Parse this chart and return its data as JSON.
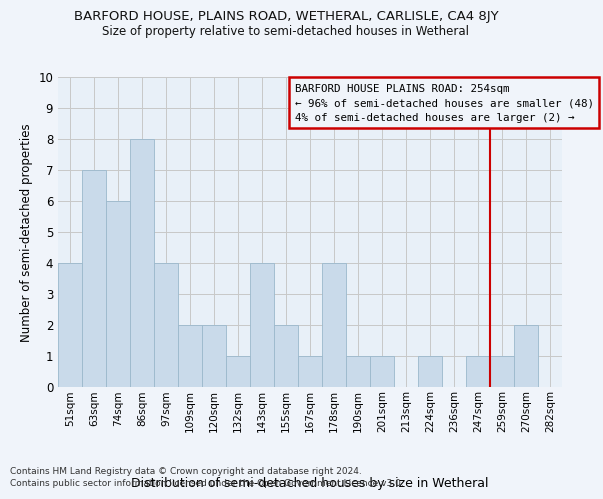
{
  "title": "BARFORD HOUSE, PLAINS ROAD, WETHERAL, CARLISLE, CA4 8JY",
  "subtitle": "Size of property relative to semi-detached houses in Wetheral",
  "xlabel": "Distribution of semi-detached houses by size in Wetheral",
  "ylabel": "Number of semi-detached properties",
  "footnote1": "Contains HM Land Registry data © Crown copyright and database right 2024.",
  "footnote2": "Contains public sector information licensed under the Open Government Licence v3.0.",
  "categories": [
    "51sqm",
    "63sqm",
    "74sqm",
    "86sqm",
    "97sqm",
    "109sqm",
    "120sqm",
    "132sqm",
    "143sqm",
    "155sqm",
    "167sqm",
    "178sqm",
    "190sqm",
    "201sqm",
    "213sqm",
    "224sqm",
    "236sqm",
    "247sqm",
    "259sqm",
    "270sqm",
    "282sqm"
  ],
  "values": [
    4,
    7,
    6,
    8,
    4,
    2,
    2,
    1,
    4,
    2,
    1,
    4,
    1,
    1,
    0,
    1,
    0,
    1,
    1,
    2,
    0
  ],
  "bar_color": "#c9daea",
  "bar_edge_color": "#9bb8cc",
  "grid_color": "#c8c8c8",
  "background_color": "#f0f4fa",
  "plot_bg_color": "#e8f0f8",
  "legend_box_color": "#cc0000",
  "marker_line_color": "#cc0000",
  "legend_title": "BARFORD HOUSE PLAINS ROAD: 254sqm",
  "legend_line1": "← 96% of semi-detached houses are smaller (48)",
  "legend_line2": "4% of semi-detached houses are larger (2) →",
  "ylim": [
    0,
    10
  ],
  "yticks": [
    0,
    1,
    2,
    3,
    4,
    5,
    6,
    7,
    8,
    9,
    10
  ]
}
